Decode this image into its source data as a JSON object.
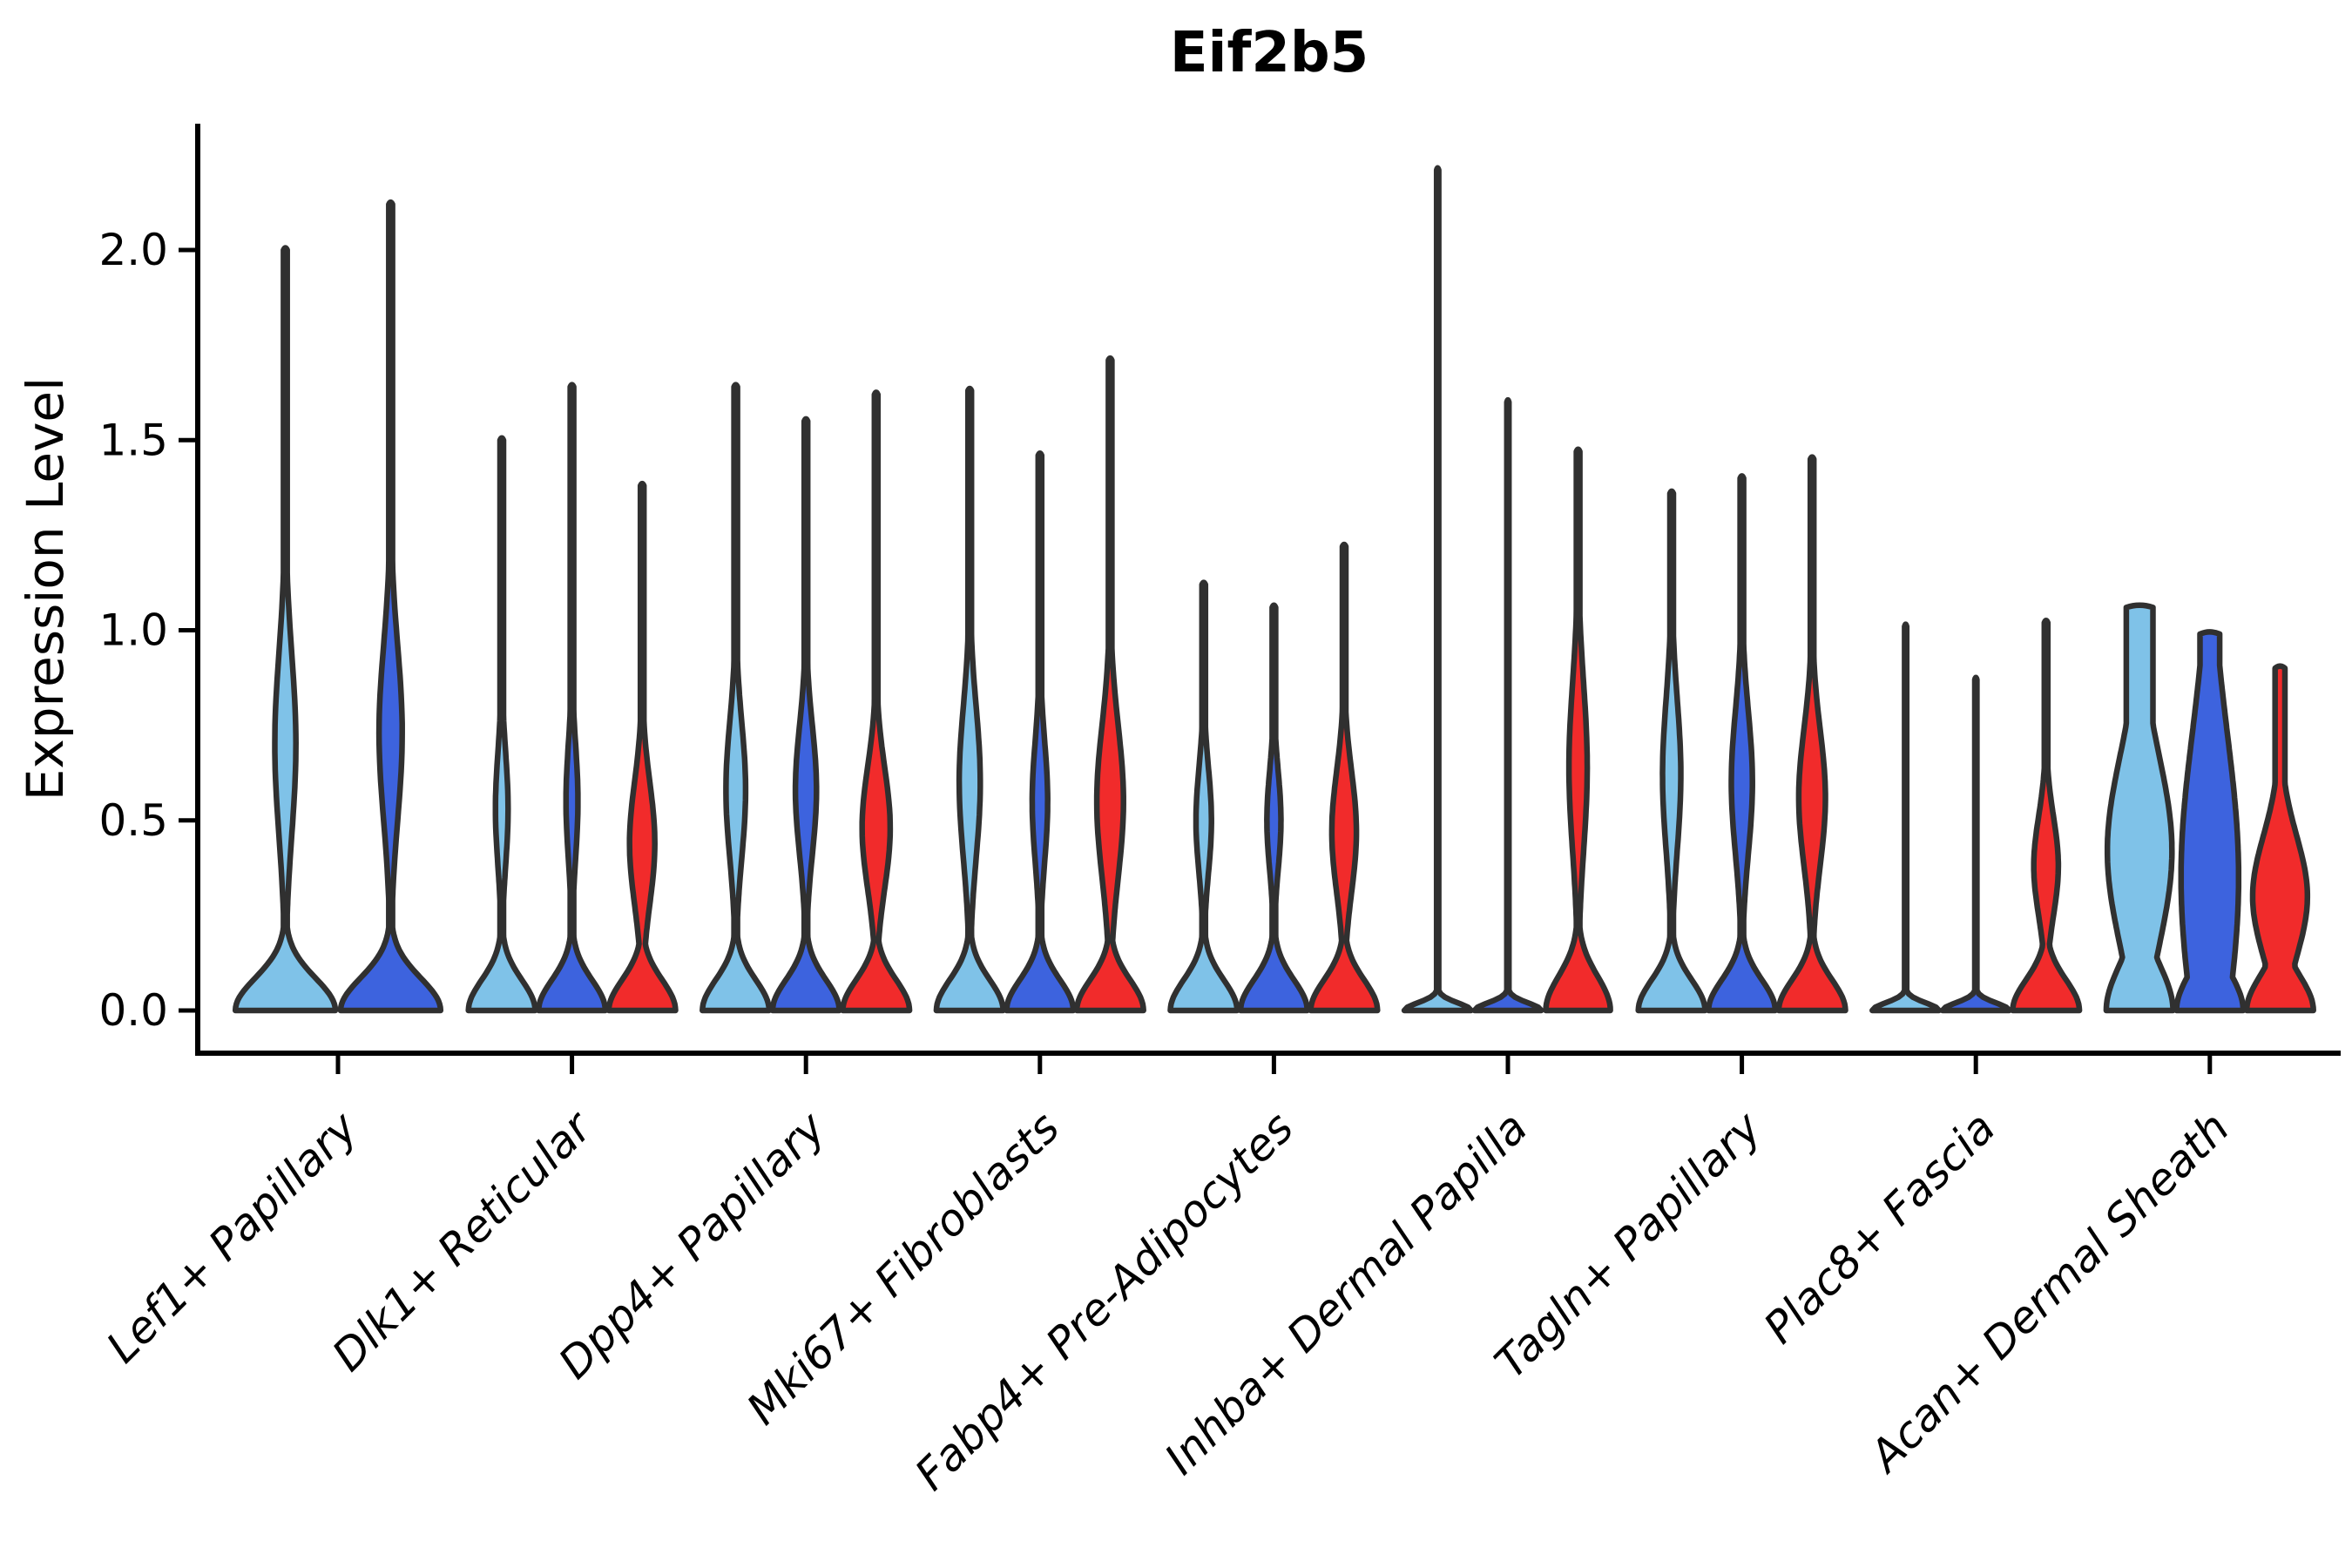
{
  "title": "Eif2b5",
  "y_axis": {
    "label": "Expression Level",
    "tick_labels": [
      "0.0",
      "0.5",
      "1.0",
      "1.5",
      "2.0"
    ],
    "tick_values": [
      0.0,
      0.5,
      1.0,
      1.5,
      2.0
    ]
  },
  "colors": {
    "series": [
      "#7FC2E8",
      "#3D63DE",
      "#F12B2B"
    ],
    "outline": "#303030",
    "axis": "#000000",
    "background": "#FFFFFF"
  },
  "chart_data": {
    "type": "violin",
    "title": "Eif2b5",
    "xlabel": "",
    "ylabel": "Expression Level",
    "ylim": [
      0,
      2.3
    ],
    "grid": false,
    "legend": "none",
    "x_tick_rotation_deg": 45,
    "categories": [
      "Lef1+ Papillary",
      "Dlk1+ Reticular",
      "Dpp4+ Papillary",
      "Mki67+ Fibroblasts",
      "Fabp4+ Pre-Adipocytes",
      "Inhba+ Dermal Papilla",
      "Tagln+ Papillary",
      "Plac8+ Fascia",
      "Acan+ Dermal Sheath"
    ],
    "series_colors": [
      "#7FC2E8",
      "#3D63DE",
      "#F12B2B"
    ],
    "description": "Split violin plot of Eif2b5 expression per fibroblast cluster; max = top of violin (max expression), base = density mass at 0, bulges = [center, spread, peak half-width fraction], cap = flat-top half-width fraction.",
    "groups": [
      {
        "category": "Lef1+ Papillary",
        "violins": [
          {
            "series": 0,
            "max": 2.0,
            "base": [
              0.95,
              0.085
            ],
            "bulges": [
              [
                0.7,
                0.24,
                0.2
              ]
            ],
            "stem": 0.035,
            "cap": 0
          },
          {
            "series": 1,
            "max": 2.12,
            "base": [
              0.95,
              0.085
            ],
            "bulges": [
              [
                0.73,
                0.23,
                0.22
              ]
            ],
            "stem": 0.035,
            "cap": 0
          }
        ]
      },
      {
        "category": "Dlk1+ Reticular",
        "violins": [
          {
            "series": 0,
            "max": 1.5,
            "base": [
              0.95,
              0.08
            ],
            "bulges": [
              [
                0.53,
                0.15,
                0.18
              ]
            ],
            "stem": 0.05,
            "cap": 0
          },
          {
            "series": 1,
            "max": 1.64,
            "base": [
              0.95,
              0.08
            ],
            "bulges": [
              [
                0.55,
                0.15,
                0.17
              ]
            ],
            "stem": 0.05,
            "cap": 0
          },
          {
            "series": 2,
            "max": 1.38,
            "base": [
              0.95,
              0.08
            ],
            "bulges": [
              [
                0.44,
                0.16,
                0.36
              ]
            ],
            "stem": 0.05,
            "cap": 0
          }
        ]
      },
      {
        "category": "Dpp4+ Papillary",
        "violins": [
          {
            "series": 0,
            "max": 1.64,
            "base": [
              0.95,
              0.08
            ],
            "bulges": [
              [
                0.58,
                0.18,
                0.28
              ]
            ],
            "stem": 0.05,
            "cap": 0
          },
          {
            "series": 1,
            "max": 1.55,
            "base": [
              0.95,
              0.08
            ],
            "bulges": [
              [
                0.58,
                0.17,
                0.3
              ]
            ],
            "stem": 0.05,
            "cap": 0
          },
          {
            "series": 2,
            "max": 1.62,
            "base": [
              0.95,
              0.08
            ],
            "bulges": [
              [
                0.48,
                0.16,
                0.4
              ]
            ],
            "stem": 0.05,
            "cap": 0
          }
        ]
      },
      {
        "category": "Mki67+ Fibroblasts",
        "violins": [
          {
            "series": 0,
            "max": 1.63,
            "base": [
              0.95,
              0.08
            ],
            "bulges": [
              [
                0.6,
                0.2,
                0.3
              ]
            ],
            "stem": 0.05,
            "cap": 0
          },
          {
            "series": 1,
            "max": 1.46,
            "base": [
              0.95,
              0.08
            ],
            "bulges": [
              [
                0.55,
                0.16,
                0.22
              ]
            ],
            "stem": 0.05,
            "cap": 0
          },
          {
            "series": 2,
            "max": 1.71,
            "base": [
              0.95,
              0.08
            ],
            "bulges": [
              [
                0.55,
                0.2,
                0.38
              ]
            ],
            "stem": 0.05,
            "cap": 0
          }
        ]
      },
      {
        "category": "Fabp4+ Pre-Adipocytes",
        "violins": [
          {
            "series": 0,
            "max": 1.12,
            "base": [
              0.95,
              0.08
            ],
            "bulges": [
              [
                0.5,
                0.14,
                0.22
              ]
            ],
            "stem": 0.05,
            "cap": 0
          },
          {
            "series": 1,
            "max": 1.06,
            "base": [
              0.95,
              0.08
            ],
            "bulges": [
              [
                0.5,
                0.13,
                0.2
              ]
            ],
            "stem": 0.05,
            "cap": 0
          },
          {
            "series": 2,
            "max": 1.22,
            "base": [
              0.95,
              0.08
            ],
            "bulges": [
              [
                0.47,
                0.16,
                0.35
              ]
            ],
            "stem": 0.05,
            "cap": 0
          }
        ]
      },
      {
        "category": "Inhba+ Dermal Papilla",
        "violins": [
          {
            "series": 0,
            "max": 2.21,
            "base": [
              0.95,
              0.02
            ],
            "bulges": [],
            "stem": 0.03,
            "cap": 0
          },
          {
            "series": 1,
            "max": 1.6,
            "base": [
              0.95,
              0.02
            ],
            "bulges": [],
            "stem": 0.03,
            "cap": 0
          },
          {
            "series": 2,
            "max": 1.47,
            "base": [
              0.92,
              0.09
            ],
            "bulges": [
              [
                0.64,
                0.22,
                0.26
              ]
            ],
            "stem": 0.05,
            "cap": 0
          }
        ]
      },
      {
        "category": "Tagln+ Papillary",
        "violins": [
          {
            "series": 0,
            "max": 1.36,
            "base": [
              0.95,
              0.08
            ],
            "bulges": [
              [
                0.62,
                0.2,
                0.26
              ]
            ],
            "stem": 0.05,
            "cap": 0
          },
          {
            "series": 1,
            "max": 1.4,
            "base": [
              0.95,
              0.08
            ],
            "bulges": [
              [
                0.6,
                0.19,
                0.3
              ]
            ],
            "stem": 0.05,
            "cap": 0
          },
          {
            "series": 2,
            "max": 1.45,
            "base": [
              0.95,
              0.08
            ],
            "bulges": [
              [
                0.56,
                0.18,
                0.38
              ]
            ],
            "stem": 0.05,
            "cap": 0
          }
        ]
      },
      {
        "category": "Plac8+ Fascia",
        "violins": [
          {
            "series": 0,
            "max": 1.01,
            "base": [
              0.95,
              0.02
            ],
            "bulges": [],
            "stem": 0.03,
            "cap": 0
          },
          {
            "series": 1,
            "max": 0.87,
            "base": [
              0.95,
              0.02
            ],
            "bulges": [],
            "stem": 0.03,
            "cap": 0
          },
          {
            "series": 2,
            "max": 1.02,
            "base": [
              0.95,
              0.08
            ],
            "bulges": [
              [
                0.38,
                0.13,
                0.35
              ]
            ],
            "stem": 0.05,
            "cap": 0
          }
        ]
      },
      {
        "category": "Acan+ Dermal Sheath",
        "violins": [
          {
            "series": 0,
            "max": 1.06,
            "base": [
              0.95,
              0.12
            ],
            "bulges": [
              [
                0.42,
                0.25,
                0.92
              ]
            ],
            "stem": 0.05,
            "cap": 0.38
          },
          {
            "series": 1,
            "max": 0.99,
            "base": [
              0.95,
              0.1
            ],
            "bulges": [
              [
                0.35,
                0.38,
                0.82
              ]
            ],
            "stem": 0.05,
            "cap": 0.28
          },
          {
            "series": 2,
            "max": 0.9,
            "base": [
              0.95,
              0.09
            ],
            "bulges": [
              [
                0.3,
                0.16,
                0.78
              ]
            ],
            "stem": 0.06,
            "cap": 0.14
          }
        ]
      }
    ]
  }
}
